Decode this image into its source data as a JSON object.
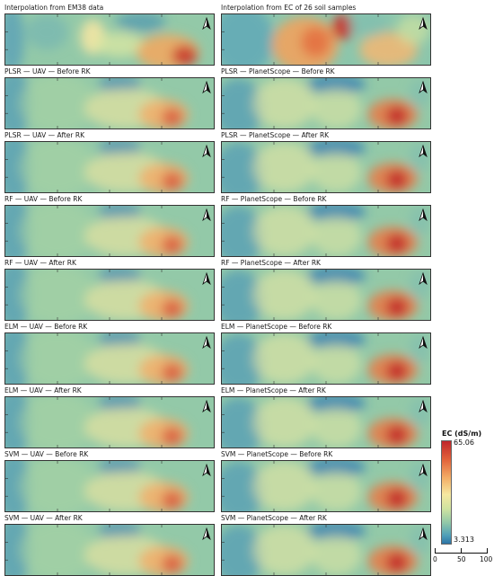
{
  "panels": [
    {
      "title": "Interpolation from EM38 data",
      "kind": "em38"
    },
    {
      "title": "Interpolation from EC of 26 soil samples",
      "kind": "samples"
    },
    {
      "title": "PLSR — UAV — Before RK",
      "kind": "uav"
    },
    {
      "title": "PLSR — PlanetScope — Before RK",
      "kind": "ps"
    },
    {
      "title": "PLSR — UAV — After RK",
      "kind": "uav"
    },
    {
      "title": "PLSR — PlanetScope — After RK",
      "kind": "ps"
    },
    {
      "title": "RF — UAV — Before RK",
      "kind": "uav"
    },
    {
      "title": "RF — PlanetScope — Before RK",
      "kind": "ps"
    },
    {
      "title": "RF — UAV — After RK",
      "kind": "uav"
    },
    {
      "title": "RF — PlanetScope — After RK",
      "kind": "ps"
    },
    {
      "title": "ELM — UAV — Before RK",
      "kind": "uav"
    },
    {
      "title": "ELM — PlanetScope — Before RK",
      "kind": "ps"
    },
    {
      "title": "ELM — UAV — After RK",
      "kind": "uav"
    },
    {
      "title": "ELM — PlanetScope — After RK",
      "kind": "ps"
    },
    {
      "title": "SVM — UAV — Before RK",
      "kind": "uav"
    },
    {
      "title": "SVM — PlanetScope — Before RK",
      "kind": "ps"
    },
    {
      "title": "SVM — UAV — After RK",
      "kind": "uav"
    },
    {
      "title": "SVM — PlanetScope — After RK",
      "kind": "ps"
    }
  ],
  "legend": {
    "title": "EC (dS/m)",
    "max": "65.06",
    "min": "3.313",
    "colors": [
      "#c0262a",
      "#e2623a",
      "#f3ae67",
      "#f6e8a0",
      "#cfe3a0",
      "#8fc7a8",
      "#4f9fb8",
      "#2c74a6"
    ]
  },
  "scalebar": {
    "labels": [
      "0",
      "50",
      "100 m"
    ]
  }
}
